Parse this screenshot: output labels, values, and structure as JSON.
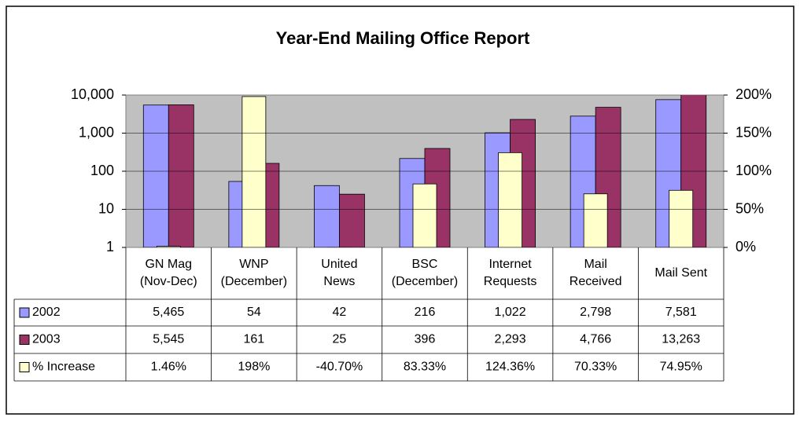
{
  "chart_data": {
    "type": "bar",
    "title": "Year-End Mailing Office Report",
    "categories": [
      [
        "GN Mag",
        "(Nov-Dec)"
      ],
      [
        "WNP",
        "(December)"
      ],
      [
        "United",
        "News"
      ],
      [
        "BSC",
        "(December)"
      ],
      [
        "Internet",
        "Requests"
      ],
      [
        "Mail",
        "Received"
      ],
      [
        "Mail Sent"
      ]
    ],
    "series": [
      {
        "name": "2002",
        "color": "#9999ff",
        "values": [
          5465,
          54,
          42,
          216,
          1022,
          2798,
          7581
        ],
        "value_labels": [
          "5,465",
          "54",
          "42",
          "216",
          "1,022",
          "2,798",
          "7,581"
        ]
      },
      {
        "name": "2003",
        "color": "#993366",
        "values": [
          5545,
          161,
          25,
          396,
          2293,
          4766,
          13263
        ],
        "value_labels": [
          "5,545",
          "161",
          "25",
          "396",
          "2,293",
          "4,766",
          "13,263"
        ]
      },
      {
        "name": "% Increase",
        "color": "#ffffcc",
        "axis": "y2",
        "values": [
          1.46,
          198,
          -40.7,
          83.33,
          124.36,
          70.33,
          74.95
        ],
        "value_labels": [
          "1.46%",
          "198%",
          "-40.70%",
          "83.33%",
          "124.36%",
          "70.33%",
          "74.95%"
        ]
      }
    ],
    "ylim": [
      1,
      10000
    ],
    "log": true,
    "yticks": [
      1,
      10,
      100,
      {
        "value": 1000,
        "label": "1,000"
      },
      {
        "value": 10000,
        "label": "10,000"
      }
    ],
    "y2lim": [
      0,
      200
    ],
    "y2ticks": [
      {
        "value": 0,
        "label": "0%"
      },
      {
        "value": 50,
        "label": "50%"
      },
      {
        "value": 100,
        "label": "100%"
      },
      {
        "value": 150,
        "label": "150%"
      },
      {
        "value": 200,
        "label": "200%"
      }
    ],
    "grid": true
  }
}
